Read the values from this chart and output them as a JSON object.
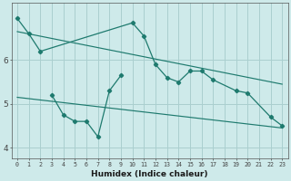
{
  "xlabel": "Humidex (Indice chaleur)",
  "bg_color": "#ceeaea",
  "grid_color": "#aacfcf",
  "line_color": "#1e7a6e",
  "x": [
    0,
    1,
    2,
    3,
    4,
    5,
    6,
    7,
    8,
    9,
    10,
    11,
    12,
    13,
    14,
    15,
    16,
    17,
    18,
    19,
    20,
    21,
    22,
    23
  ],
  "series1": [
    6.95,
    6.6,
    6.2,
    null,
    null,
    null,
    null,
    null,
    null,
    null,
    6.85,
    6.55,
    5.9,
    5.6,
    5.5,
    5.75,
    5.75,
    5.55,
    null,
    5.3,
    5.25,
    null,
    4.7,
    4.5
  ],
  "series2": [
    null,
    null,
    null,
    5.2,
    4.75,
    4.6,
    4.6,
    4.25,
    5.3,
    5.65,
    null,
    null,
    null,
    null,
    null,
    null,
    null,
    null,
    null,
    null,
    null,
    null,
    null,
    null
  ],
  "trend1_x": [
    0,
    23
  ],
  "trend1_y": [
    6.65,
    5.45
  ],
  "trend2_x": [
    0,
    23
  ],
  "trend2_y": [
    5.15,
    4.45
  ],
  "ylim": [
    3.75,
    7.3
  ],
  "xlim": [
    -0.5,
    23.5
  ],
  "yticks": [
    4,
    5,
    6
  ],
  "xticks": [
    0,
    1,
    2,
    3,
    4,
    5,
    6,
    7,
    8,
    9,
    10,
    11,
    12,
    13,
    14,
    15,
    16,
    17,
    18,
    19,
    20,
    21,
    22,
    23
  ]
}
